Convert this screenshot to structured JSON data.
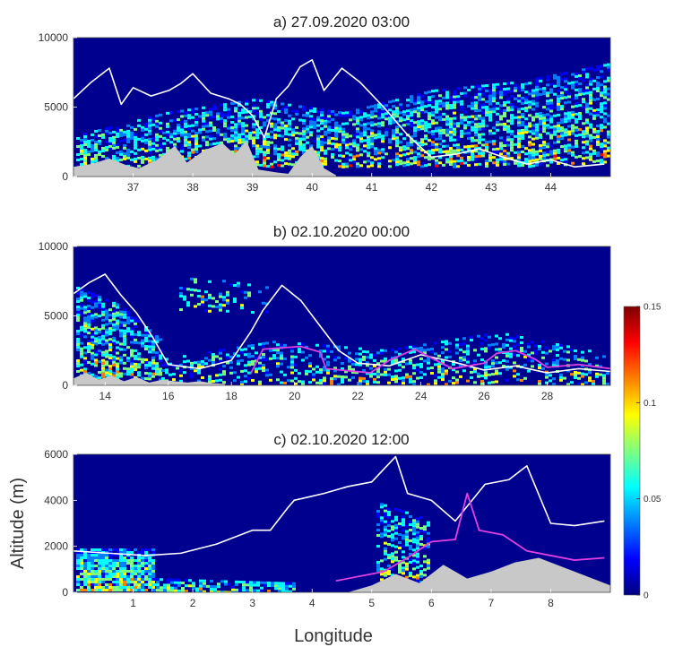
{
  "figure": {
    "xlabel": "Longitude",
    "ylabel": "Altitude (m)"
  },
  "colors": {
    "background": "#00008f",
    "terrain": "#c8c8c8",
    "contour_white": "#ffffff",
    "contour_magenta": "#e040e0",
    "colormap": [
      "#00007f",
      "#0000ff",
      "#007fff",
      "#00ffff",
      "#7fff7f",
      "#ffff00",
      "#ff7f00",
      "#ff0000",
      "#7f0000"
    ]
  },
  "chart_data": [
    {
      "type": "heatmap",
      "title": "a) 27.09.2020 03:00",
      "xlim": [
        36,
        45
      ],
      "ylim": [
        0,
        10000
      ],
      "xticks": [
        37,
        38,
        39,
        40,
        41,
        42,
        43,
        44
      ],
      "yticks": [
        0,
        5000,
        10000
      ],
      "terrain_profile": {
        "x": [
          36.0,
          36.3,
          36.6,
          36.9,
          37.1,
          37.4,
          37.7,
          37.9,
          38.2,
          38.5,
          38.7,
          38.9,
          39.1,
          39.4,
          39.6,
          39.8,
          40.0,
          40.2,
          40.4
        ],
        "y": [
          700,
          900,
          1300,
          800,
          600,
          1200,
          2200,
          1000,
          1900,
          2400,
          1600,
          2600,
          500,
          300,
          200,
          1400,
          2200,
          600,
          100
        ]
      },
      "white_contour": {
        "x": [
          36.0,
          36.3,
          36.6,
          36.8,
          37.0,
          37.3,
          37.6,
          37.8,
          38.0,
          38.3,
          38.6,
          38.8,
          39.0,
          39.2,
          39.4,
          39.6,
          39.8,
          40.0,
          40.2,
          40.5,
          40.8,
          41.2,
          41.6,
          42.0,
          42.4,
          42.8,
          43.2,
          43.6,
          44.0,
          44.4,
          44.9
        ],
        "y": [
          5600,
          6800,
          7800,
          5200,
          6400,
          5800,
          6200,
          6700,
          7400,
          6000,
          5600,
          5200,
          4400,
          2800,
          5600,
          6500,
          7900,
          8400,
          6200,
          7800,
          6800,
          5000,
          3000,
          1400,
          1600,
          2000,
          1400,
          900,
          1200,
          700,
          900
        ]
      }
    },
    {
      "type": "heatmap",
      "title": "b) 02.10.2020 00:00",
      "xlim": [
        13,
        30
      ],
      "ylim": [
        0,
        10000
      ],
      "xticks": [
        14,
        16,
        18,
        20,
        22,
        24,
        26,
        28
      ],
      "yticks": [
        0,
        5000,
        10000
      ],
      "terrain_profile": {
        "x": [
          13.0,
          13.4,
          13.8,
          14.2,
          14.6,
          15.0,
          15.4,
          15.8,
          16.2,
          16.6,
          17.0,
          17.4,
          17.8
        ],
        "y": [
          500,
          900,
          400,
          700,
          300,
          600,
          200,
          400,
          300,
          200,
          300,
          150,
          100
        ]
      },
      "white_contour": {
        "x": [
          13.0,
          13.5,
          14.0,
          14.5,
          15.0,
          15.5,
          16.0,
          17.0,
          18.0,
          18.6,
          19.0,
          19.6,
          20.2,
          20.8,
          21.4,
          22.0,
          23.0,
          24.0,
          25.0,
          26.0,
          27.0,
          28.0,
          29.0,
          30.0
        ],
        "y": [
          6600,
          7400,
          8000,
          6500,
          5200,
          3500,
          1500,
          1200,
          1800,
          3800,
          5400,
          7200,
          6100,
          4300,
          2500,
          1600,
          1400,
          2200,
          1700,
          1100,
          1400,
          900,
          1200,
          1000
        ]
      },
      "magenta_contour": {
        "x": [
          18.6,
          19.0,
          19.6,
          20.2,
          20.8,
          21.0,
          22.4,
          23.0,
          23.8,
          24.4,
          25.0,
          26.0,
          26.4,
          27.0,
          27.6,
          28.0,
          29.0,
          30.0
        ],
        "y": [
          800,
          2600,
          2700,
          2800,
          2400,
          1200,
          900,
          1800,
          2600,
          1900,
          1200,
          1600,
          2300,
          2500,
          1900,
          1300,
          1500,
          1200
        ]
      }
    },
    {
      "type": "heatmap",
      "title": "c) 02.10.2020 12:00",
      "xlim": [
        0,
        9
      ],
      "ylim": [
        0,
        6000
      ],
      "xticks": [
        1,
        2,
        3,
        4,
        5,
        6,
        7,
        8
      ],
      "yticks": [
        0,
        2000,
        4000,
        6000
      ],
      "terrain_profile": {
        "x": [
          4.6,
          5.0,
          5.4,
          5.8,
          6.2,
          6.6,
          7.0,
          7.4,
          7.8,
          8.2,
          8.6,
          9.0
        ],
        "y": [
          0,
          300,
          800,
          400,
          1200,
          600,
          900,
          1300,
          1500,
          1100,
          700,
          300
        ]
      },
      "white_contour": {
        "x": [
          0.0,
          0.6,
          1.2,
          1.8,
          2.4,
          3.0,
          3.3,
          3.6,
          3.7,
          4.2,
          4.6,
          5.0,
          5.4,
          5.6,
          6.0,
          6.4,
          6.9,
          7.3,
          7.6,
          8.0,
          8.4,
          8.9
        ],
        "y": [
          1800,
          1700,
          1600,
          1700,
          2100,
          2700,
          2700,
          3700,
          4000,
          4300,
          4600,
          4800,
          5900,
          4300,
          4000,
          3100,
          4700,
          4900,
          5500,
          3000,
          2900,
          3100
        ]
      },
      "magenta_contour": {
        "x": [
          4.4,
          4.8,
          5.2,
          5.6,
          6.0,
          6.4,
          6.6,
          6.8,
          7.2,
          7.6,
          8.0,
          8.4,
          8.9
        ],
        "y": [
          500,
          700,
          900,
          1500,
          2200,
          2300,
          4300,
          2700,
          2500,
          1800,
          1600,
          1400,
          1500
        ]
      }
    }
  ],
  "colorbar": {
    "min": 0,
    "max": 0.15,
    "ticks": [
      {
        "value": 0,
        "label": "0"
      },
      {
        "value": 0.05,
        "label": "0.05"
      },
      {
        "value": 0.1,
        "label": "0.1"
      },
      {
        "value": 0.15,
        "label": "0.15"
      }
    ]
  }
}
